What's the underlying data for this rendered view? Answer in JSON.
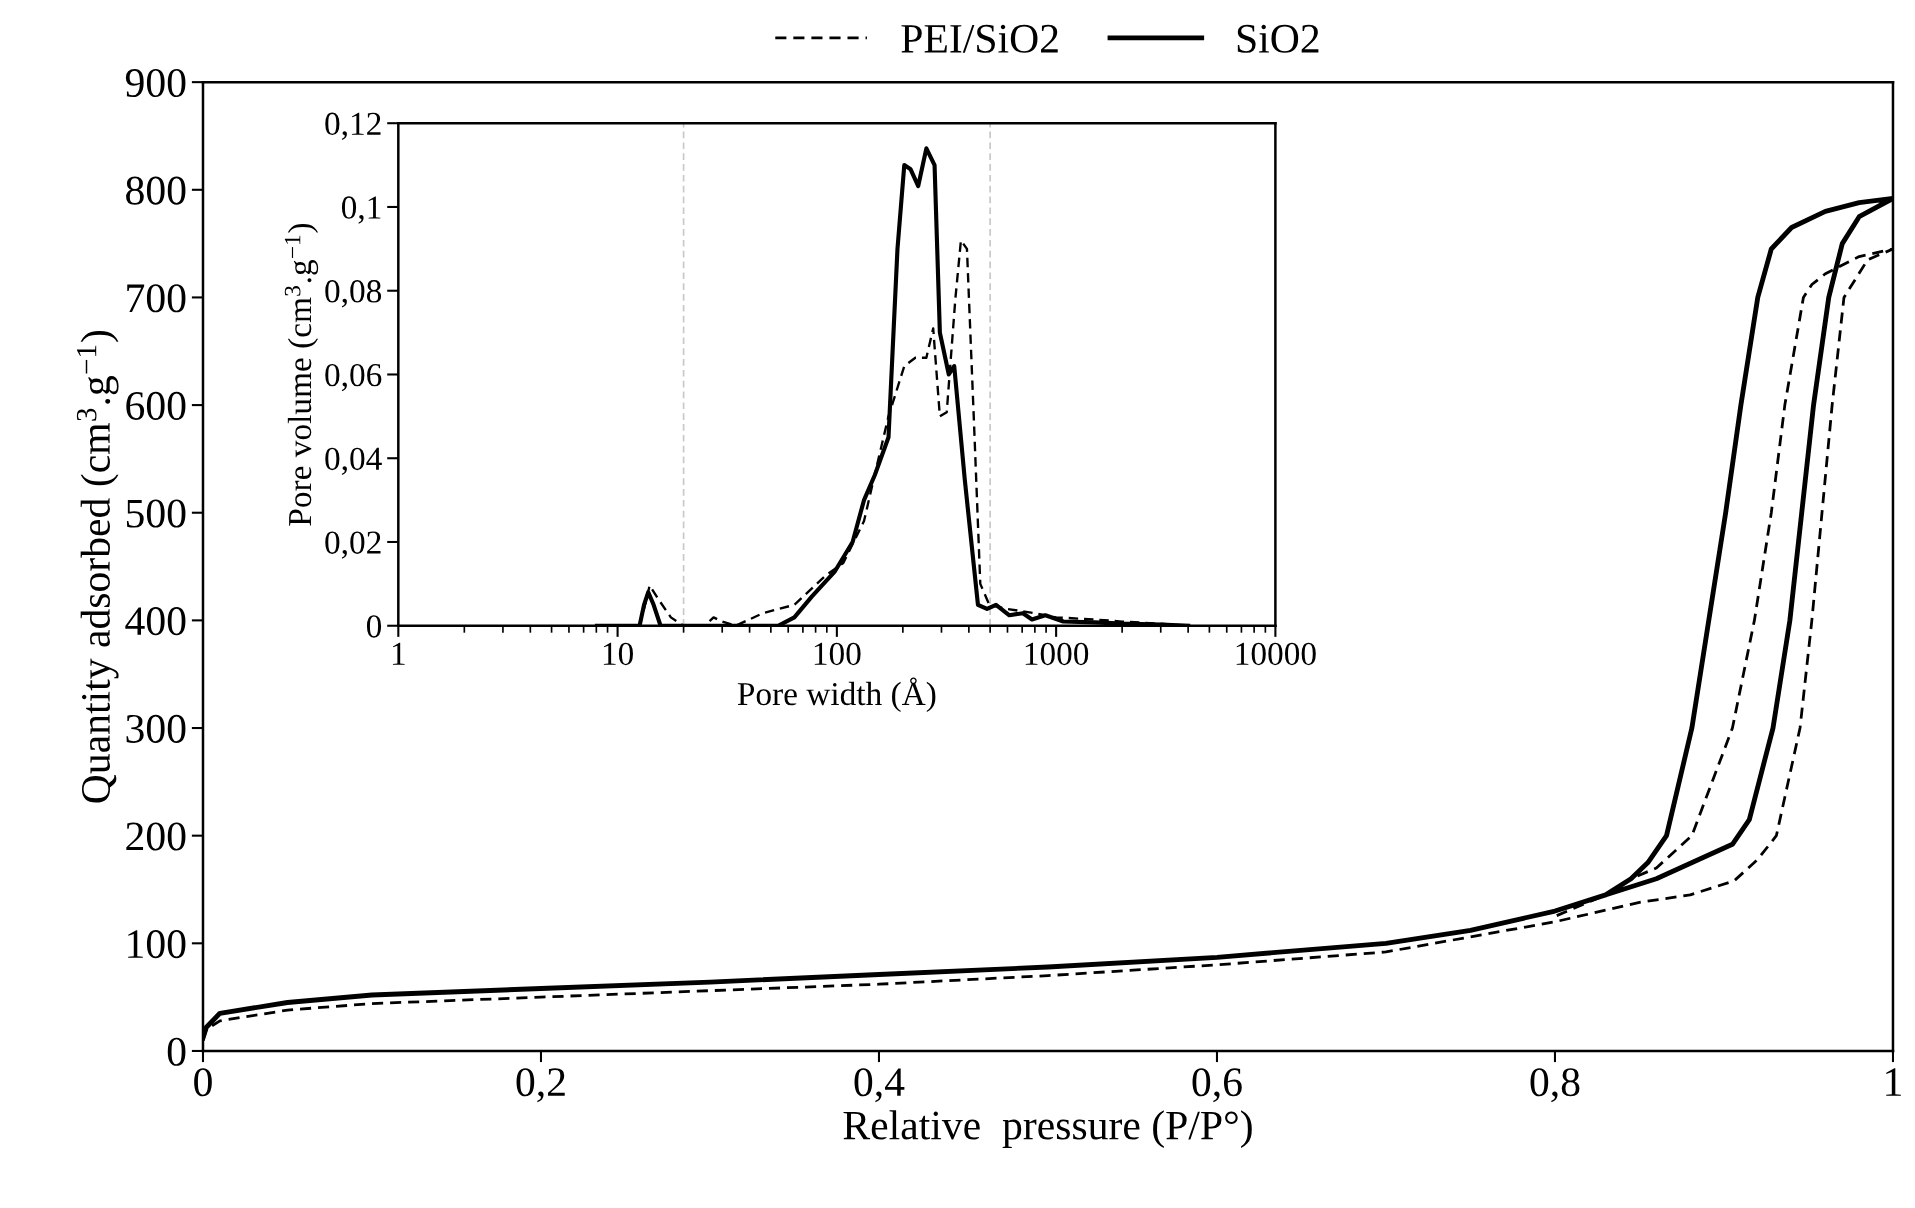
{
  "chart_data": [
    {
      "type": "line",
      "xlabel": "Relative  pressure (P/P°)",
      "ylabel": "Quantity adsorbed (cm$^{3}$.g$^{−1}$)",
      "xlim": [
        0,
        1
      ],
      "xticks": [
        0,
        {
          "value": 0.2,
          "label": "0,2"
        },
        {
          "value": 0.4,
          "label": "0,4"
        },
        {
          "value": 0.6,
          "label": "0,6"
        },
        {
          "value": 0.8,
          "label": "0,8"
        },
        1
      ],
      "ylim": [
        0,
        900
      ],
      "yticks": [
        0,
        100,
        200,
        300,
        400,
        500,
        600,
        700,
        800,
        900
      ],
      "grid": false,
      "legend": "top",
      "series": [
        {
          "name": "PEI/SiO2",
          "color": "#000000",
          "line_style": "dashed",
          "x": [
            0,
            0.002,
            0.01,
            0.05,
            0.1,
            0.2,
            0.3,
            0.4,
            0.5,
            0.6,
            0.7,
            0.8,
            0.85,
            0.88,
            0.906,
            0.92,
            0.931,
            0.945,
            0.952,
            0.958,
            0.964,
            0.971,
            0.985,
            1.0,
            0.98,
            0.96,
            0.952,
            0.947,
            0.936,
            0.928,
            0.918,
            0.905,
            0.881,
            0.86,
            0.845,
            0.83,
            0.8
          ],
          "values": [
            10,
            20,
            28,
            38,
            44,
            50,
            56,
            62,
            70,
            80,
            92,
            120,
            138,
            145,
            158,
            178,
            200,
            300,
            400,
            500,
            600,
            700,
            735,
            745,
            738,
            722,
            712,
            700,
            600,
            500,
            400,
            300,
            200,
            170,
            160,
            145,
            125
          ]
        },
        {
          "name": "SiO2",
          "color": "#000000",
          "line_style": "solid",
          "x": [
            0,
            0.002,
            0.01,
            0.05,
            0.1,
            0.2,
            0.3,
            0.4,
            0.5,
            0.6,
            0.7,
            0.75,
            0.8,
            0.84,
            0.86,
            0.888,
            0.905,
            0.915,
            0.929,
            0.939,
            0.946,
            0.953,
            0.962,
            0.97,
            0.98,
            1.0,
            0.98,
            0.96,
            0.94,
            0.928,
            0.92,
            0.91,
            0.901,
            0.891,
            0.881,
            0.866,
            0.855,
            0.845,
            0.83,
            0.8
          ],
          "values": [
            12,
            22,
            35,
            45,
            52,
            58,
            64,
            71,
            78,
            87,
            100,
            112,
            130,
            150,
            160,
            180,
            192,
            215,
            300,
            400,
            500,
            600,
            700,
            750,
            775,
            792,
            788,
            780,
            765,
            745,
            700,
            600,
            500,
            400,
            300,
            200,
            175,
            160,
            145,
            130
          ]
        }
      ]
    },
    {
      "type": "line",
      "xlabel": "Pore width (Å)",
      "ylabel": "Pore volume (cm$^{3}$.g$^{−1}$)",
      "log": "x",
      "xlim": [
        1,
        10000
      ],
      "xticks": [
        1,
        10,
        100,
        1000,
        10000
      ],
      "ylim": [
        0,
        0.12
      ],
      "yticks": [
        0,
        {
          "value": 0.02,
          "label": "0,02"
        },
        {
          "value": 0.04,
          "label": "0,04"
        },
        {
          "value": 0.06,
          "label": "0,06"
        },
        {
          "value": 0.08,
          "label": "0,08"
        },
        {
          "value": 0.1,
          "label": "0,1"
        },
        {
          "value": 0.12,
          "label": "0,12"
        }
      ],
      "grid": false,
      "ref_lines": [
        {
          "axis": "x",
          "value": 20,
          "color": "#c8c8c8",
          "line_style": "dashed"
        },
        {
          "axis": "x",
          "value": 500,
          "color": "#c8c8c8",
          "line_style": "dashed"
        }
      ],
      "series": [
        {
          "color": "#000000",
          "line_style": "dashed",
          "x": [
            12.6,
            13.5,
            14,
            15.5,
            17.5,
            20,
            25,
            27.4,
            30,
            34.6,
            46,
            64,
            89,
            107,
            133,
            155,
            172,
            203,
            228,
            256,
            275,
            295,
            317,
            347,
            368,
            392,
            421,
            451,
            496,
            600,
            800,
            1000,
            1500,
            2000,
            3000,
            4000
          ],
          "values": [
            0,
            0.006,
            0.0096,
            0.006,
            0.002,
            0,
            0,
            0.002,
            0.001,
            0,
            0.003,
            0.005,
            0.012,
            0.015,
            0.025,
            0.04,
            0.05,
            0.062,
            0.064,
            0.064,
            0.071,
            0.05,
            0.051,
            0.078,
            0.092,
            0.09,
            0.05,
            0.01,
            0.005,
            0.004,
            0.003,
            0.002,
            0.0015,
            0.001,
            0.0005,
            0
          ]
        },
        {
          "color": "#000000",
          "line_style": "solid",
          "x": [
            8.05,
            12.6,
            13.2,
            13.8,
            14.6,
            15.7,
            20,
            54,
            64,
            77,
            98,
            118,
            133,
            149,
            172,
            189,
            203,
            217,
            235,
            256,
            279,
            295,
            324,
            343,
            383,
            440,
            484,
            532,
            612,
            706,
            776,
            893,
            1079,
            1500,
            2000,
            3000,
            4000
          ],
          "values": [
            0,
            0,
            0.005,
            0.008,
            0.005,
            0,
            0,
            0,
            0.002,
            0.007,
            0.013,
            0.02,
            0.03,
            0.036,
            0.045,
            0.09,
            0.11,
            0.109,
            0.105,
            0.114,
            0.11,
            0.07,
            0.06,
            0.062,
            0.035,
            0.005,
            0.004,
            0.005,
            0.0025,
            0.003,
            0.0015,
            0.0025,
            0.001,
            0.0008,
            0.0005,
            0.0003,
            0
          ]
        }
      ]
    }
  ]
}
